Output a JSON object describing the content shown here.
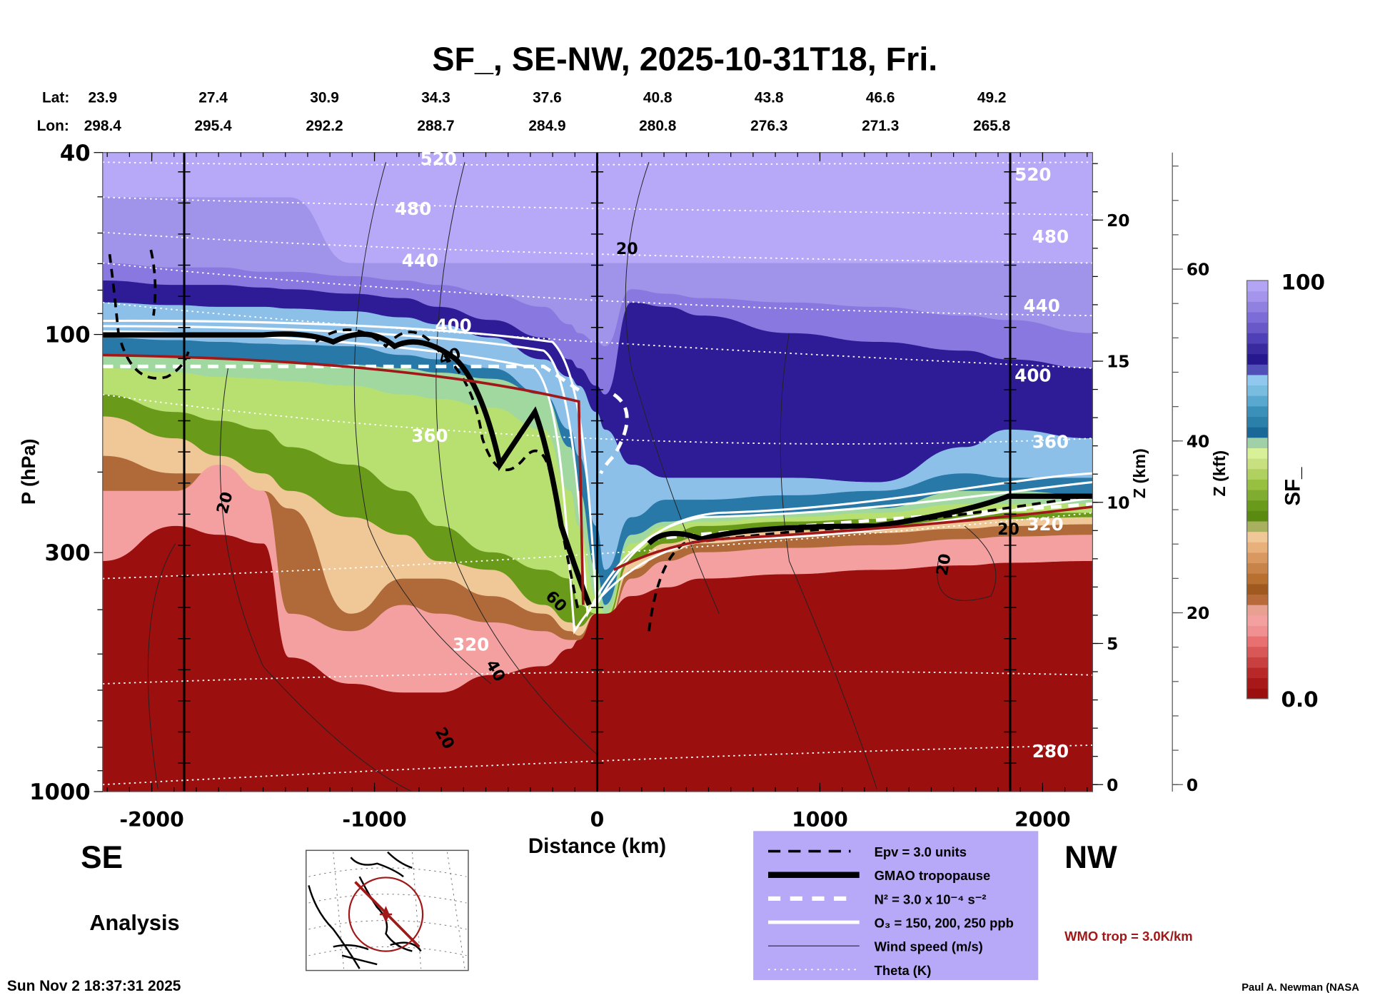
{
  "chart_data": {
    "type": "heatmap",
    "title": "SF_, SE-NW, 2025-10-31T18, Fri.",
    "xlabel": "Distance (km)",
    "ylabel": "P (hPa)",
    "y2label": "Z (km)",
    "y3label": "Z (kft)",
    "colorbar_label": "SF_",
    "colorbar_range": [
      0.0,
      100
    ],
    "colorbar_ticks": [
      "100",
      "0.0"
    ],
    "xlim": [
      -2217,
      2228
    ],
    "ylim": [
      1000,
      40
    ],
    "x_ticks": [
      "-2000",
      "-1000",
      "0",
      "1000",
      "2000"
    ],
    "y_ticks": [
      "40",
      "100",
      "300",
      "1000"
    ],
    "zkm_ticks": [
      "20",
      "15",
      "10",
      "5",
      "0"
    ],
    "zkft_ticks": [
      "60",
      "40",
      "20",
      "0"
    ],
    "lat_label": "Lat:",
    "lon_label": "Lon:",
    "lat": [
      "23.9",
      "27.4",
      "30.9",
      "34.3",
      "37.6",
      "40.8",
      "43.8",
      "46.6",
      "49.2"
    ],
    "lon": [
      "298.4",
      "295.4",
      "292.2",
      "288.7",
      "284.9",
      "280.8",
      "276.3",
      "271.3",
      "265.8"
    ],
    "theta_labels": [
      "520",
      "480",
      "440",
      "400",
      "360",
      "320",
      "280",
      "520",
      "480",
      "440",
      "400",
      "360",
      "320"
    ],
    "wind_labels": [
      "20",
      "20",
      "40",
      "60",
      "40",
      "20",
      "20",
      "20"
    ],
    "legend": [
      "Epv = 3.0 units",
      "GMAO tropopause",
      "N² = 3.0 x 10⁻⁴ s⁻²",
      "O₃ = 150, 200, 250 ppb",
      "Wind speed (m/s)",
      "Theta (K)"
    ],
    "wmo_note": "WMO trop = 3.0K/km",
    "left_dir": "SE",
    "right_dir": "NW",
    "mode": "Analysis",
    "timestamp": "Sun Nov  2 18:37:31 2025",
    "credit": "Paul A. Newman (NASA",
    "colors": {
      "wmo": "#a01818",
      "legend_bg": "#b8a8f8",
      "high": "#b8a8f8",
      "low": "#9b0f0f"
    }
  }
}
